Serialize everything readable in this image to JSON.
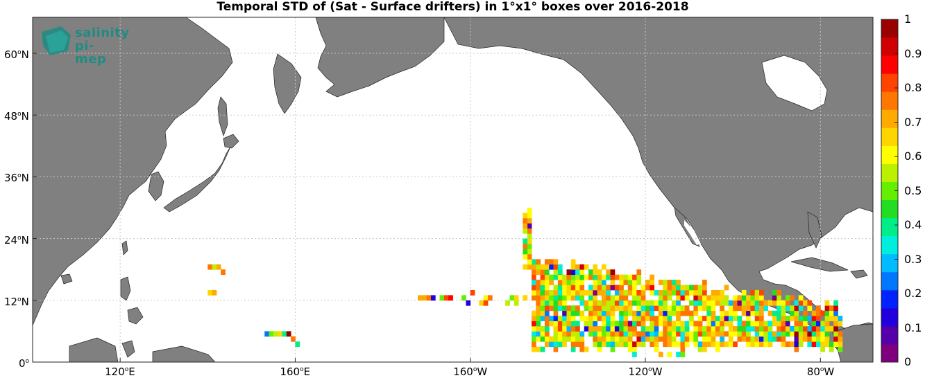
{
  "title": "Temporal STD of (Sat - Surface drifters) in 1°x1° boxes over 2016-2018",
  "logo": {
    "line1": "salinity",
    "line2": "pi-mep"
  },
  "colors": {
    "land": "#808080",
    "ocean": "#ffffff",
    "grid": "#c8c8c8",
    "logo": "#1f8c84"
  },
  "map": {
    "lon_range": [
      100,
      292
    ],
    "lat_range": [
      0,
      67
    ],
    "lat_ticks": [
      {
        "value": 0,
        "deg": "0",
        "hemi": ""
      },
      {
        "value": 12,
        "deg": "12",
        "hemi": "N"
      },
      {
        "value": 24,
        "deg": "24",
        "hemi": "N"
      },
      {
        "value": 36,
        "deg": "36",
        "hemi": "N"
      },
      {
        "value": 48,
        "deg": "48",
        "hemi": "N"
      },
      {
        "value": 60,
        "deg": "60",
        "hemi": "N"
      }
    ],
    "lon_ticks": [
      {
        "value": 120,
        "deg": "120",
        "hemi": "E"
      },
      {
        "value": 160,
        "deg": "160",
        "hemi": "E"
      },
      {
        "value": 200,
        "deg": "160",
        "hemi": "W"
      },
      {
        "value": 240,
        "deg": "120",
        "hemi": "W"
      },
      {
        "value": 280,
        "deg": "80",
        "hemi": "W"
      }
    ]
  },
  "colorbar": {
    "ticks": [
      "0",
      "0.1",
      "0.2",
      "0.3",
      "0.4",
      "0.5",
      "0.6",
      "0.7",
      "0.8",
      "0.9",
      "1"
    ],
    "colors": [
      "#7f007f",
      "#5500aa",
      "#2200dd",
      "#0022ff",
      "#0077ff",
      "#00bbff",
      "#00eedd",
      "#00ee88",
      "#22dd22",
      "#66ee00",
      "#bbf000",
      "#ffff00",
      "#ffd500",
      "#ffaa00",
      "#ff7700",
      "#ff4400",
      "#ff0000",
      "#d00000",
      "#990000"
    ]
  }
}
